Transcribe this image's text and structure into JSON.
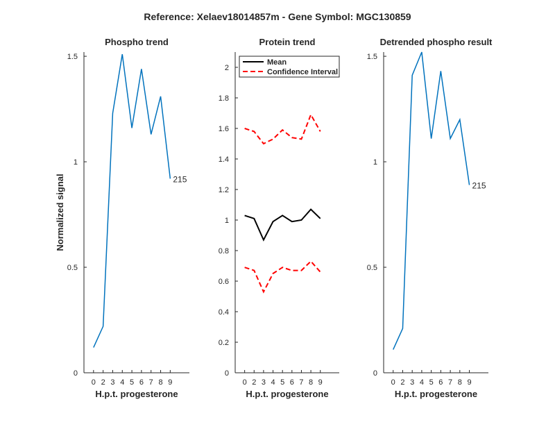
{
  "figure": {
    "suptitle": "Reference:  Xelaev18014857m - Gene Symbol:  MGC130859"
  },
  "chart_data": [
    {
      "type": "line",
      "title": "Phospho trend",
      "xlabel": "H.p.t. progesterone",
      "ylabel": "Normalized signal",
      "xlim": [
        -1,
        10
      ],
      "ylim": [
        0,
        1.52
      ],
      "x_ticks": [
        0,
        2,
        3,
        4,
        5,
        6,
        7,
        8,
        9
      ],
      "y_ticks": [
        0,
        0.5,
        1,
        1.5
      ],
      "y_tick_labels": [
        "0",
        "0.5",
        "1",
        "1.5"
      ],
      "grid": false,
      "series": [
        {
          "color": "#0072BD",
          "style": "solid",
          "x": [
            0,
            1,
            2,
            3,
            4,
            5,
            6,
            7,
            8
          ],
          "y": [
            0.12,
            0.22,
            1.23,
            1.51,
            1.16,
            1.44,
            1.13,
            1.31,
            0.92
          ]
        }
      ],
      "annotations": [
        {
          "text": "215",
          "x": 8,
          "y": 0.92
        }
      ]
    },
    {
      "type": "line",
      "title": "Protein trend",
      "xlabel": "H.p.t. progesterone",
      "ylabel": "",
      "xlim": [
        -1,
        10
      ],
      "ylim": [
        0,
        2.1
      ],
      "x_ticks": [
        0,
        2,
        3,
        4,
        5,
        6,
        7,
        8,
        9
      ],
      "y_ticks": [
        0,
        0.2,
        0.4,
        0.6,
        0.8,
        1,
        1.2,
        1.4,
        1.6,
        1.8,
        2
      ],
      "y_tick_labels": [
        "0",
        "0.2",
        "0.4",
        "0.6",
        "0.8",
        "1",
        "1.2",
        "1.4",
        "1.6",
        "1.8",
        "2"
      ],
      "grid": false,
      "legend": {
        "position": "top-left",
        "entries": [
          "Mean",
          "Confidence Interval"
        ]
      },
      "series": [
        {
          "name": "Mean",
          "color": "#000000",
          "style": "solid",
          "x": [
            0,
            1,
            2,
            3,
            4,
            5,
            6,
            7,
            8
          ],
          "y": [
            1.03,
            1.01,
            0.87,
            0.99,
            1.03,
            0.99,
            1.0,
            1.07,
            1.01
          ]
        },
        {
          "name": "Confidence Interval",
          "color": "#FF0000",
          "style": "dashed",
          "x": [
            0,
            1,
            2,
            3,
            4,
            5,
            6,
            7,
            8
          ],
          "y": [
            1.6,
            1.58,
            1.5,
            1.53,
            1.59,
            1.54,
            1.53,
            1.69,
            1.58
          ]
        },
        {
          "color": "#FF0000",
          "style": "dashed",
          "legend": false,
          "x": [
            0,
            1,
            2,
            3,
            4,
            5,
            6,
            7,
            8
          ],
          "y": [
            0.69,
            0.67,
            0.53,
            0.65,
            0.69,
            0.67,
            0.67,
            0.73,
            0.66
          ]
        }
      ]
    },
    {
      "type": "line",
      "title": "Detrended phospho result",
      "xlabel": "H.p.t. progesterone",
      "ylabel": "",
      "xlim": [
        -1,
        10
      ],
      "ylim": [
        0,
        1.52
      ],
      "x_ticks": [
        0,
        2,
        3,
        4,
        5,
        6,
        7,
        8,
        9
      ],
      "y_ticks": [
        0,
        0.5,
        1,
        1.5
      ],
      "y_tick_labels": [
        "0",
        "0.5",
        "1",
        "1.5"
      ],
      "grid": false,
      "series": [
        {
          "color": "#0072BD",
          "style": "solid",
          "x": [
            0,
            1,
            2,
            3,
            4,
            5,
            6,
            7,
            8
          ],
          "y": [
            0.11,
            0.21,
            1.41,
            1.52,
            1.11,
            1.43,
            1.11,
            1.2,
            0.89
          ]
        }
      ],
      "annotations": [
        {
          "text": "215",
          "x": 8,
          "y": 0.89
        }
      ]
    }
  ]
}
